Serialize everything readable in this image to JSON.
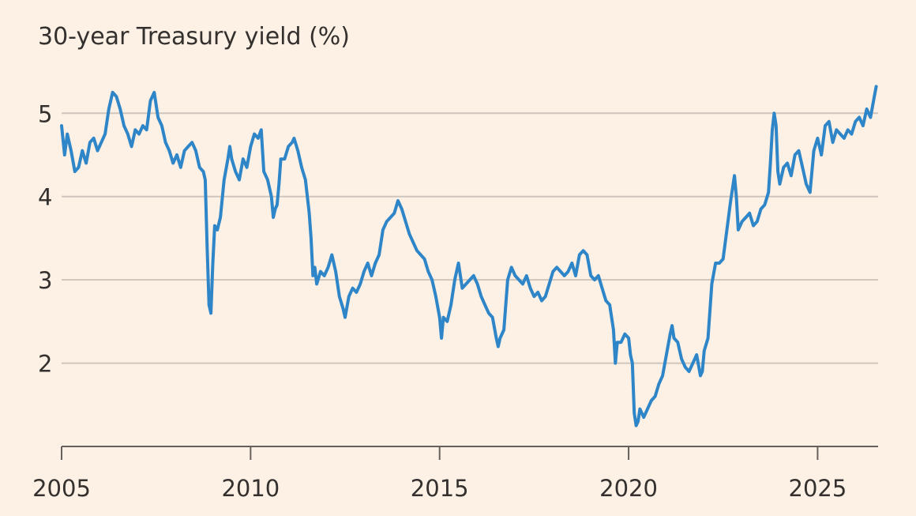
{
  "chart_data": {
    "type": "line",
    "title": "30-year Treasury yield (%)",
    "xlabel": "",
    "ylabel": "",
    "xlim": [
      2005.0,
      2026.6
    ],
    "ylim": [
      1.0,
      5.6
    ],
    "yticks": [
      2,
      3,
      4,
      5
    ],
    "xticks": [
      2005,
      2010,
      2015,
      2020,
      2025
    ],
    "grid": true,
    "legend": "none",
    "colors": {
      "line": "#2e86c8",
      "background": "#fdf1e6",
      "grid": "#cec6bd",
      "text": "#33302e"
    },
    "series": [
      {
        "x": [
          2005.0,
          2005.08,
          2005.15,
          2005.25,
          2005.35,
          2005.45,
          2005.55,
          2005.65,
          2005.75,
          2005.85,
          2005.95,
          2006.05,
          2006.15,
          2006.25,
          2006.35,
          2006.45,
          2006.55,
          2006.65,
          2006.75,
          2006.85,
          2006.95,
          2007.05,
          2007.15,
          2007.25,
          2007.35,
          2007.45,
          2007.55,
          2007.65,
          2007.75,
          2007.85,
          2007.95,
          2008.05,
          2008.15,
          2008.25,
          2008.35,
          2008.45,
          2008.55,
          2008.65,
          2008.75,
          2008.8,
          2008.85,
          2008.9,
          2008.95,
          2009.0,
          2009.05,
          2009.12,
          2009.2,
          2009.3,
          2009.4,
          2009.45,
          2009.5,
          2009.6,
          2009.7,
          2009.8,
          2009.9,
          2010.0,
          2010.1,
          2010.2,
          2010.28,
          2010.35,
          2010.45,
          2010.55,
          2010.6,
          2010.65,
          2010.7,
          2010.75,
          2010.8,
          2010.9,
          2011.0,
          2011.1,
          2011.15,
          2011.25,
          2011.35,
          2011.45,
          2011.55,
          2011.6,
          2011.65,
          2011.7,
          2011.75,
          2011.85,
          2011.95,
          2012.05,
          2012.15,
          2012.25,
          2012.35,
          2012.45,
          2012.5,
          2012.6,
          2012.7,
          2012.8,
          2012.9,
          2013.0,
          2013.1,
          2013.2,
          2013.3,
          2013.4,
          2013.5,
          2013.6,
          2013.7,
          2013.8,
          2013.9,
          2014.0,
          2014.1,
          2014.2,
          2014.3,
          2014.4,
          2014.5,
          2014.6,
          2014.7,
          2014.8,
          2014.9,
          2015.0,
          2015.05,
          2015.1,
          2015.2,
          2015.3,
          2015.4,
          2015.45,
          2015.5,
          2015.6,
          2015.7,
          2015.8,
          2015.9,
          2016.0,
          2016.1,
          2016.2,
          2016.3,
          2016.4,
          2016.5,
          2016.55,
          2016.6,
          2016.7,
          2016.8,
          2016.9,
          2017.0,
          2017.1,
          2017.2,
          2017.3,
          2017.4,
          2017.5,
          2017.6,
          2017.7,
          2017.8,
          2017.9,
          2018.0,
          2018.1,
          2018.2,
          2018.3,
          2018.4,
          2018.5,
          2018.6,
          2018.7,
          2018.8,
          2018.9,
          2019.0,
          2019.1,
          2019.2,
          2019.3,
          2019.4,
          2019.5,
          2019.6,
          2019.65,
          2019.7,
          2019.8,
          2019.9,
          2020.0,
          2020.05,
          2020.1,
          2020.15,
          2020.2,
          2020.25,
          2020.3,
          2020.4,
          2020.5,
          2020.6,
          2020.7,
          2020.8,
          2020.9,
          2021.0,
          2021.1,
          2021.15,
          2021.2,
          2021.3,
          2021.4,
          2021.5,
          2021.6,
          2021.7,
          2021.8,
          2021.9,
          2021.95,
          2022.0,
          2022.1,
          2022.2,
          2022.3,
          2022.4,
          2022.5,
          2022.6,
          2022.7,
          2022.8,
          2022.85,
          2022.9,
          2023.0,
          2023.1,
          2023.2,
          2023.3,
          2023.4,
          2023.5,
          2023.6,
          2023.7,
          2023.75,
          2023.8,
          2023.85,
          2023.9,
          2023.95,
          2024.0,
          2024.1,
          2024.2,
          2024.3,
          2024.4,
          2024.5,
          2024.6,
          2024.7,
          2024.8,
          2024.9,
          2025.0,
          2025.1,
          2025.2,
          2025.3,
          2025.4,
          2025.5,
          2025.6,
          2025.7,
          2025.8,
          2025.9,
          2026.0,
          2026.1,
          2026.2,
          2026.3,
          2026.4,
          2026.5,
          2026.55
        ],
        "values": [
          4.85,
          4.5,
          4.75,
          4.55,
          4.3,
          4.35,
          4.55,
          4.4,
          4.65,
          4.7,
          4.55,
          4.65,
          4.75,
          5.05,
          5.25,
          5.2,
          5.05,
          4.85,
          4.75,
          4.6,
          4.8,
          4.75,
          4.85,
          4.8,
          5.15,
          5.25,
          4.95,
          4.85,
          4.65,
          4.55,
          4.4,
          4.5,
          4.35,
          4.55,
          4.6,
          4.65,
          4.55,
          4.35,
          4.3,
          4.2,
          3.4,
          2.7,
          2.6,
          3.2,
          3.65,
          3.6,
          3.75,
          4.2,
          4.45,
          4.6,
          4.45,
          4.3,
          4.2,
          4.45,
          4.35,
          4.6,
          4.75,
          4.7,
          4.8,
          4.3,
          4.2,
          4.0,
          3.75,
          3.85,
          3.9,
          4.15,
          4.45,
          4.45,
          4.6,
          4.65,
          4.7,
          4.55,
          4.35,
          4.2,
          3.8,
          3.5,
          3.05,
          3.15,
          2.95,
          3.1,
          3.05,
          3.15,
          3.3,
          3.1,
          2.8,
          2.65,
          2.55,
          2.8,
          2.9,
          2.85,
          2.95,
          3.1,
          3.2,
          3.05,
          3.2,
          3.3,
          3.6,
          3.7,
          3.75,
          3.8,
          3.95,
          3.85,
          3.7,
          3.55,
          3.45,
          3.35,
          3.3,
          3.25,
          3.1,
          3.0,
          2.8,
          2.55,
          2.3,
          2.55,
          2.5,
          2.7,
          3.0,
          3.1,
          3.2,
          2.9,
          2.95,
          3.0,
          3.05,
          2.95,
          2.8,
          2.7,
          2.6,
          2.55,
          2.3,
          2.2,
          2.3,
          2.4,
          3.0,
          3.15,
          3.05,
          3.0,
          2.95,
          3.05,
          2.9,
          2.8,
          2.85,
          2.75,
          2.8,
          2.95,
          3.1,
          3.15,
          3.1,
          3.05,
          3.1,
          3.2,
          3.05,
          3.3,
          3.35,
          3.3,
          3.05,
          3.0,
          3.05,
          2.9,
          2.75,
          2.7,
          2.4,
          2.0,
          2.25,
          2.25,
          2.35,
          2.3,
          2.1,
          2.0,
          1.4,
          1.25,
          1.3,
          1.45,
          1.35,
          1.45,
          1.55,
          1.6,
          1.75,
          1.85,
          2.1,
          2.35,
          2.45,
          2.3,
          2.25,
          2.05,
          1.95,
          1.9,
          2.0,
          2.1,
          1.85,
          1.9,
          2.15,
          2.3,
          2.95,
          3.2,
          3.2,
          3.25,
          3.6,
          3.95,
          4.25,
          4.0,
          3.6,
          3.7,
          3.75,
          3.8,
          3.65,
          3.7,
          3.85,
          3.9,
          4.05,
          4.4,
          4.8,
          5.0,
          4.85,
          4.3,
          4.15,
          4.35,
          4.4,
          4.25,
          4.5,
          4.55,
          4.35,
          4.15,
          4.05,
          4.55,
          4.7,
          4.5,
          4.85,
          4.9,
          4.65,
          4.8,
          4.75,
          4.7,
          4.8,
          4.75,
          4.9,
          4.95,
          4.85,
          5.05,
          4.95,
          5.2,
          5.32
        ]
      }
    ]
  }
}
